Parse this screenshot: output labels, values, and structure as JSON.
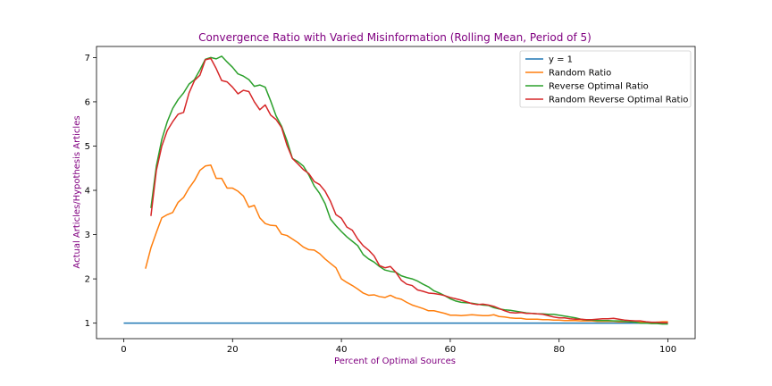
{
  "chart_data": {
    "type": "line",
    "title": "Convergence Ratio with Varied Misinformation (Rolling Mean, Period of 5)",
    "xlabel": "Percent of Optimal Sources",
    "ylabel": "Actual Articles/Hypothesis Articles",
    "xlim": [
      -5,
      105
    ],
    "ylim": [
      0.65,
      7.25
    ],
    "xticks": [
      0,
      20,
      40,
      60,
      80,
      100
    ],
    "yticks": [
      1,
      2,
      3,
      4,
      5,
      6,
      7
    ],
    "xtick_labels": [
      "0",
      "20",
      "40",
      "60",
      "80",
      "100"
    ],
    "ytick_labels": [
      "1",
      "2",
      "3",
      "4",
      "5",
      "6",
      "7"
    ],
    "grid": false,
    "legend_position": "top-right",
    "title_color": "#800080",
    "label_color": "#800080",
    "series": [
      {
        "name": "y = 1",
        "color": "#1f77b4",
        "x": [
          0,
          100
        ],
        "y": [
          1.0,
          1.0
        ]
      },
      {
        "name": "Random Ratio",
        "color": "#ff7f0e",
        "x": [
          4,
          5,
          6,
          7,
          8,
          9,
          10,
          11,
          12,
          13,
          14,
          15,
          16,
          17,
          18,
          19,
          20,
          21,
          22,
          23,
          24,
          25,
          26,
          27,
          28,
          29,
          30,
          31,
          32,
          33,
          34,
          35,
          36,
          37,
          38,
          39,
          40,
          41,
          42,
          43,
          44,
          45,
          46,
          47,
          48,
          49,
          50,
          51,
          52,
          53,
          54,
          55,
          56,
          57,
          58,
          59,
          60,
          61,
          62,
          63,
          64,
          65,
          66,
          67,
          68,
          69,
          70,
          71,
          72,
          73,
          74,
          75,
          76,
          77,
          78,
          79,
          80,
          81,
          82,
          83,
          84,
          85,
          86,
          87,
          88,
          89,
          90,
          91,
          92,
          93,
          94,
          95,
          96,
          97,
          98,
          99,
          100
        ],
        "y": [
          2.23,
          2.7,
          3.05,
          3.38,
          3.45,
          3.5,
          3.73,
          3.84,
          4.05,
          4.22,
          4.45,
          4.55,
          4.57,
          4.27,
          4.27,
          4.05,
          4.05,
          3.98,
          3.87,
          3.62,
          3.66,
          3.38,
          3.25,
          3.21,
          3.2,
          3.01,
          2.98,
          2.9,
          2.82,
          2.72,
          2.66,
          2.65,
          2.57,
          2.45,
          2.35,
          2.25,
          2.0,
          1.92,
          1.85,
          1.77,
          1.68,
          1.63,
          1.64,
          1.6,
          1.58,
          1.63,
          1.57,
          1.54,
          1.47,
          1.41,
          1.37,
          1.33,
          1.28,
          1.28,
          1.25,
          1.22,
          1.18,
          1.18,
          1.17,
          1.18,
          1.19,
          1.18,
          1.17,
          1.17,
          1.19,
          1.15,
          1.14,
          1.12,
          1.11,
          1.11,
          1.09,
          1.09,
          1.09,
          1.08,
          1.08,
          1.07,
          1.07,
          1.06,
          1.06,
          1.06,
          1.05,
          1.05,
          1.05,
          1.04,
          1.04,
          1.04,
          1.04,
          1.03,
          1.03,
          1.03,
          1.02,
          1.02,
          1.01,
          1.01,
          1.02,
          1.03,
          1.03
        ]
      },
      {
        "name": "Reverse Optimal Ratio",
        "color": "#2ca02c",
        "x": [
          5,
          6,
          7,
          8,
          9,
          10,
          11,
          12,
          13,
          14,
          15,
          16,
          17,
          18,
          19,
          20,
          21,
          22,
          23,
          24,
          25,
          26,
          27,
          28,
          29,
          30,
          31,
          32,
          33,
          34,
          35,
          36,
          37,
          38,
          39,
          40,
          41,
          42,
          43,
          44,
          45,
          46,
          47,
          48,
          49,
          50,
          51,
          52,
          53,
          54,
          55,
          56,
          57,
          58,
          59,
          60,
          61,
          62,
          63,
          64,
          65,
          66,
          67,
          68,
          69,
          70,
          71,
          72,
          73,
          74,
          75,
          76,
          77,
          78,
          79,
          80,
          81,
          82,
          83,
          84,
          85,
          86,
          87,
          88,
          89,
          90,
          91,
          92,
          93,
          94,
          95,
          96,
          97,
          98,
          99,
          100
        ],
        "y": [
          3.6,
          4.55,
          5.15,
          5.55,
          5.85,
          6.05,
          6.2,
          6.4,
          6.5,
          6.72,
          6.96,
          7.0,
          6.97,
          7.03,
          6.9,
          6.78,
          6.63,
          6.58,
          6.5,
          6.35,
          6.38,
          6.33,
          6.02,
          5.68,
          5.45,
          5.12,
          4.72,
          4.65,
          4.55,
          4.35,
          4.1,
          3.93,
          3.7,
          3.35,
          3.2,
          3.07,
          2.95,
          2.85,
          2.75,
          2.55,
          2.45,
          2.38,
          2.28,
          2.2,
          2.17,
          2.15,
          2.07,
          2.03,
          2.0,
          1.95,
          1.88,
          1.82,
          1.73,
          1.68,
          1.62,
          1.55,
          1.5,
          1.47,
          1.46,
          1.45,
          1.43,
          1.41,
          1.4,
          1.35,
          1.32,
          1.3,
          1.29,
          1.27,
          1.25,
          1.23,
          1.22,
          1.21,
          1.21,
          1.2,
          1.2,
          1.18,
          1.16,
          1.14,
          1.12,
          1.09,
          1.07,
          1.07,
          1.06,
          1.06,
          1.06,
          1.05,
          1.05,
          1.04,
          1.03,
          1.02,
          1.0,
          1.0,
          0.99,
          0.99,
          0.98,
          0.98
        ]
      },
      {
        "name": "Random Reverse Optimal Ratio",
        "color": "#d62728",
        "x": [
          5,
          6,
          7,
          8,
          9,
          10,
          11,
          12,
          13,
          14,
          15,
          16,
          17,
          18,
          19,
          20,
          21,
          22,
          23,
          24,
          25,
          26,
          27,
          28,
          29,
          30,
          31,
          32,
          33,
          34,
          35,
          36,
          37,
          38,
          39,
          40,
          41,
          42,
          43,
          44,
          45,
          46,
          47,
          48,
          49,
          50,
          51,
          52,
          53,
          54,
          55,
          56,
          57,
          58,
          59,
          60,
          61,
          62,
          63,
          64,
          65,
          66,
          67,
          68,
          69,
          70,
          71,
          72,
          73,
          74,
          75,
          76,
          77,
          78,
          79,
          80,
          81,
          82,
          83,
          84,
          85,
          86,
          87,
          88,
          89,
          90,
          91,
          92,
          93,
          94,
          95,
          96,
          97,
          98,
          99,
          100
        ],
        "y": [
          3.42,
          4.45,
          5.0,
          5.35,
          5.55,
          5.72,
          5.76,
          6.2,
          6.48,
          6.6,
          6.95,
          6.98,
          6.75,
          6.48,
          6.45,
          6.33,
          6.18,
          6.26,
          6.23,
          6.0,
          5.82,
          5.93,
          5.7,
          5.6,
          5.42,
          5.02,
          4.72,
          4.6,
          4.47,
          4.38,
          4.2,
          4.13,
          3.98,
          3.75,
          3.45,
          3.37,
          3.17,
          3.1,
          2.9,
          2.75,
          2.65,
          2.52,
          2.3,
          2.25,
          2.28,
          2.15,
          1.97,
          1.88,
          1.85,
          1.75,
          1.72,
          1.68,
          1.67,
          1.65,
          1.62,
          1.58,
          1.55,
          1.52,
          1.48,
          1.44,
          1.42,
          1.43,
          1.41,
          1.38,
          1.33,
          1.28,
          1.24,
          1.23,
          1.24,
          1.22,
          1.22,
          1.21,
          1.2,
          1.17,
          1.14,
          1.12,
          1.12,
          1.1,
          1.09,
          1.09,
          1.08,
          1.08,
          1.09,
          1.1,
          1.1,
          1.11,
          1.09,
          1.07,
          1.06,
          1.05,
          1.05,
          1.03,
          1.02,
          1.02,
          1.01,
          1.01
        ]
      }
    ]
  }
}
